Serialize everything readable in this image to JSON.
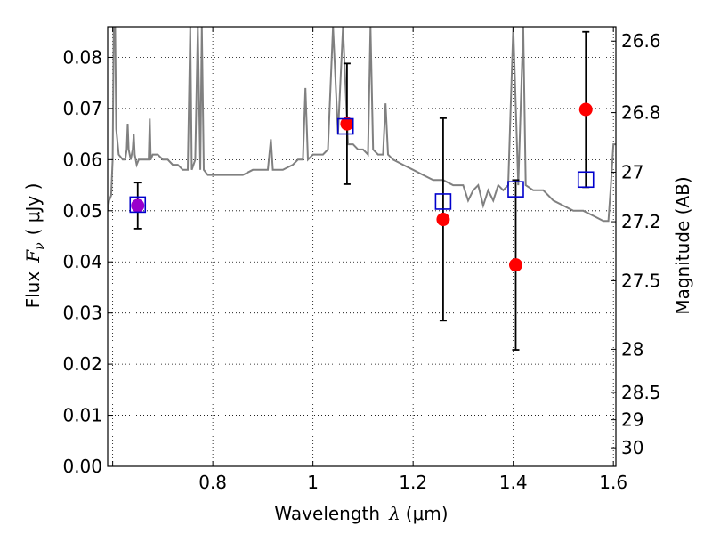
{
  "chart_data": {
    "type": "scatter",
    "xlabel_text": "Wavelength",
    "xlabel_symbol": "λ",
    "xlabel_unit": "(μm)",
    "ylabel_text": "Flux",
    "ylabel_symbol": "F",
    "ylabel_sub": "ν",
    "ylabel_unit": "( μJy )",
    "y2label": "Magnitude (AB)",
    "xlim": [
      0.59,
      1.605
    ],
    "ylim": [
      0.0,
      0.086
    ],
    "grid": true,
    "x_ticks": [
      {
        "value": 0.6,
        "label": ""
      },
      {
        "value": 0.8,
        "label": "0.8"
      },
      {
        "value": 1.0,
        "label": "1"
      },
      {
        "value": 1.2,
        "label": "1.2"
      },
      {
        "value": 1.4,
        "label": "1.4"
      },
      {
        "value": 1.6,
        "label": "1.6"
      }
    ],
    "y_ticks": [
      {
        "value": 0.0,
        "label": "0.00"
      },
      {
        "value": 0.01,
        "label": "0.01"
      },
      {
        "value": 0.02,
        "label": "0.02"
      },
      {
        "value": 0.03,
        "label": "0.03"
      },
      {
        "value": 0.04,
        "label": "0.04"
      },
      {
        "value": 0.05,
        "label": "0.05"
      },
      {
        "value": 0.06,
        "label": "0.06"
      },
      {
        "value": 0.07,
        "label": "0.07"
      },
      {
        "value": 0.08,
        "label": "0.08"
      }
    ],
    "y2_ticks": [
      {
        "mag": 26.6,
        "label": "26.6"
      },
      {
        "mag": 26.8,
        "label": "26.8"
      },
      {
        "mag": 27.0,
        "label": "27"
      },
      {
        "mag": 27.2,
        "label": "27.2"
      },
      {
        "mag": 27.5,
        "label": "27.5"
      },
      {
        "mag": 28.0,
        "label": "28"
      },
      {
        "mag": 28.5,
        "label": "28.5"
      },
      {
        "mag": 29.0,
        "label": "29"
      },
      {
        "mag": 30.0,
        "label": "30"
      }
    ],
    "observed": [
      {
        "x": 0.65,
        "y": 0.051,
        "yerr_low": 0.0045,
        "yerr_high": 0.0045,
        "color": "#9900cc"
      },
      {
        "x": 1.068,
        "y": 0.067,
        "yerr_low": 0.0118,
        "yerr_high": 0.0118,
        "color": "#ff0000"
      },
      {
        "x": 1.26,
        "y": 0.0483,
        "yerr_low": 0.0198,
        "yerr_high": 0.0198,
        "color": "#ff0000"
      },
      {
        "x": 1.405,
        "y": 0.0394,
        "yerr_low": 0.0166,
        "yerr_high": 0.0166,
        "color": "#ff0000"
      },
      {
        "x": 1.545,
        "y": 0.0698,
        "yerr_low": 0.0152,
        "yerr_high": 0.0152,
        "color": "#ff0000"
      }
    ],
    "model_bands": [
      {
        "x": 0.65,
        "y": 0.0512
      },
      {
        "x": 1.065,
        "y": 0.0665
      },
      {
        "x": 1.26,
        "y": 0.0518
      },
      {
        "x": 1.405,
        "y": 0.0542
      },
      {
        "x": 1.545,
        "y": 0.0561
      }
    ],
    "spectrum": [
      [
        0.59,
        0.05
      ],
      [
        0.593,
        0.052
      ],
      [
        0.597,
        0.053
      ],
      [
        0.6,
        0.06
      ],
      [
        0.602,
        0.086
      ],
      [
        0.605,
        0.086
      ],
      [
        0.607,
        0.066
      ],
      [
        0.612,
        0.061
      ],
      [
        0.62,
        0.06
      ],
      [
        0.625,
        0.06
      ],
      [
        0.628,
        0.062
      ],
      [
        0.63,
        0.067
      ],
      [
        0.632,
        0.062
      ],
      [
        0.636,
        0.06
      ],
      [
        0.64,
        0.062
      ],
      [
        0.642,
        0.065
      ],
      [
        0.644,
        0.061
      ],
      [
        0.648,
        0.059
      ],
      [
        0.652,
        0.06
      ],
      [
        0.66,
        0.06
      ],
      [
        0.668,
        0.06
      ],
      [
        0.672,
        0.06
      ],
      [
        0.674,
        0.068
      ],
      [
        0.676,
        0.06
      ],
      [
        0.68,
        0.061
      ],
      [
        0.69,
        0.061
      ],
      [
        0.7,
        0.06
      ],
      [
        0.71,
        0.06
      ],
      [
        0.72,
        0.059
      ],
      [
        0.73,
        0.059
      ],
      [
        0.74,
        0.058
      ],
      [
        0.75,
        0.058
      ],
      [
        0.755,
        0.086
      ],
      [
        0.758,
        0.058
      ],
      [
        0.765,
        0.06
      ],
      [
        0.77,
        0.086
      ],
      [
        0.775,
        0.058
      ],
      [
        0.778,
        0.086
      ],
      [
        0.782,
        0.058
      ],
      [
        0.79,
        0.057
      ],
      [
        0.8,
        0.057
      ],
      [
        0.82,
        0.057
      ],
      [
        0.84,
        0.057
      ],
      [
        0.86,
        0.057
      ],
      [
        0.88,
        0.058
      ],
      [
        0.89,
        0.058
      ],
      [
        0.9,
        0.058
      ],
      [
        0.91,
        0.058
      ],
      [
        0.916,
        0.064
      ],
      [
        0.92,
        0.058
      ],
      [
        0.94,
        0.058
      ],
      [
        0.96,
        0.059
      ],
      [
        0.97,
        0.06
      ],
      [
        0.98,
        0.06
      ],
      [
        0.985,
        0.074
      ],
      [
        0.99,
        0.06
      ],
      [
        1.0,
        0.061
      ],
      [
        1.02,
        0.061
      ],
      [
        1.03,
        0.062
      ],
      [
        1.04,
        0.086
      ],
      [
        1.05,
        0.065
      ],
      [
        1.06,
        0.086
      ],
      [
        1.07,
        0.063
      ],
      [
        1.08,
        0.063
      ],
      [
        1.09,
        0.062
      ],
      [
        1.1,
        0.062
      ],
      [
        1.11,
        0.061
      ],
      [
        1.115,
        0.086
      ],
      [
        1.12,
        0.062
      ],
      [
        1.13,
        0.061
      ],
      [
        1.14,
        0.061
      ],
      [
        1.145,
        0.071
      ],
      [
        1.15,
        0.061
      ],
      [
        1.16,
        0.06
      ],
      [
        1.18,
        0.059
      ],
      [
        1.2,
        0.058
      ],
      [
        1.22,
        0.057
      ],
      [
        1.24,
        0.056
      ],
      [
        1.26,
        0.056
      ],
      [
        1.28,
        0.055
      ],
      [
        1.3,
        0.055
      ],
      [
        1.31,
        0.052
      ],
      [
        1.32,
        0.054
      ],
      [
        1.33,
        0.055
      ],
      [
        1.34,
        0.051
      ],
      [
        1.35,
        0.054
      ],
      [
        1.36,
        0.052
      ],
      [
        1.37,
        0.055
      ],
      [
        1.38,
        0.054
      ],
      [
        1.39,
        0.055
      ],
      [
        1.4,
        0.086
      ],
      [
        1.41,
        0.055
      ],
      [
        1.42,
        0.086
      ],
      [
        1.425,
        0.055
      ],
      [
        1.44,
        0.054
      ],
      [
        1.46,
        0.054
      ],
      [
        1.47,
        0.053
      ],
      [
        1.48,
        0.052
      ],
      [
        1.5,
        0.051
      ],
      [
        1.52,
        0.05
      ],
      [
        1.54,
        0.05
      ],
      [
        1.56,
        0.049
      ],
      [
        1.58,
        0.048
      ],
      [
        1.59,
        0.048
      ],
      [
        1.595,
        0.055
      ],
      [
        1.6,
        0.063
      ],
      [
        1.605,
        0.063
      ]
    ],
    "colors": {
      "spectrum": "#808080",
      "model_marker": "#0000cc",
      "errorbar": "#000000"
    }
  }
}
